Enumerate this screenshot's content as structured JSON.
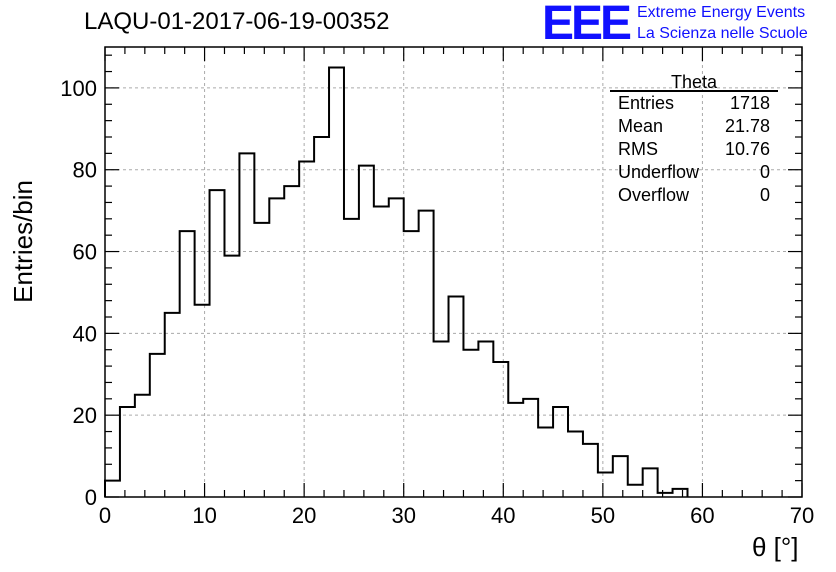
{
  "header": {
    "title": "LAQU-01-2017-06-19-00352",
    "logo_text": "EEE",
    "logo_line1": "Extreme Energy Events",
    "logo_line2": "La Scienza nelle Scuole"
  },
  "stats": {
    "title": "Theta",
    "rows": [
      {
        "name": "Entries",
        "value": "1718"
      },
      {
        "name": "Mean",
        "value": "21.78"
      },
      {
        "name": "RMS",
        "value": "10.76"
      },
      {
        "name": "Underflow",
        "value": "0"
      },
      {
        "name": "Overflow",
        "value": "0"
      }
    ]
  },
  "chart_data": {
    "type": "histogram",
    "xlabel": "θ [°]",
    "ylabel": "Entries/bin",
    "xlim": [
      0,
      70
    ],
    "ylim": [
      0,
      110
    ],
    "bin_width": 1.5,
    "bin_start": 0,
    "values": [
      4,
      22,
      25,
      35,
      45,
      65,
      47,
      75,
      59,
      84,
      67,
      73,
      76,
      82,
      88,
      105,
      68,
      81,
      71,
      73,
      65,
      70,
      38,
      49,
      36,
      38,
      33,
      23,
      24,
      17,
      22,
      16,
      13,
      6,
      10,
      3,
      7,
      1,
      2
    ],
    "x_ticks": [
      0,
      10,
      20,
      30,
      40,
      50,
      60,
      70
    ],
    "y_ticks": [
      0,
      20,
      40,
      60,
      80,
      100
    ],
    "grid": true,
    "line_color": "#000000"
  }
}
